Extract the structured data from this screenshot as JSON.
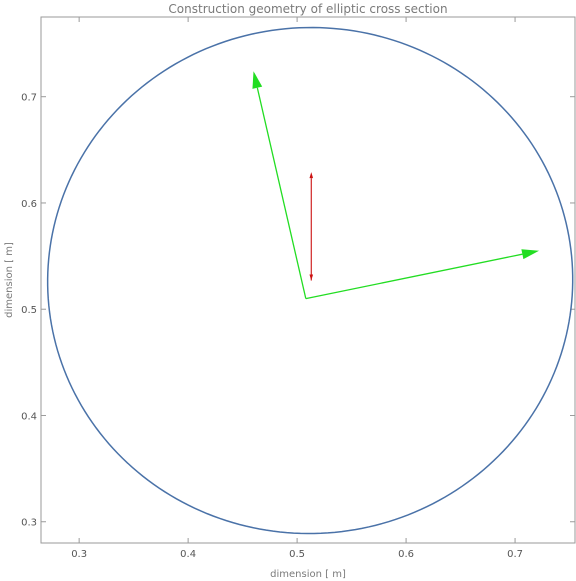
{
  "chart_data": {
    "type": "line",
    "title": "Construction geometry of elliptic cross section",
    "xlabel": "dimension [ m]",
    "ylabel": "dimension [ m]",
    "xlim": [
      0.265,
      0.755
    ],
    "ylim": [
      0.28,
      0.775
    ],
    "xticks": [
      0.3,
      0.4,
      0.5,
      0.6,
      0.7
    ],
    "yticks": [
      0.3,
      0.4,
      0.5,
      0.6,
      0.7
    ],
    "xtick_labels": [
      "0.3",
      "0.4",
      "0.5",
      "0.6",
      "0.7"
    ],
    "ytick_labels": [
      "0.3",
      "0.4",
      "0.5",
      "0.6",
      "0.7"
    ],
    "grid": false,
    "ellipse": {
      "center": [
        0.512,
        0.527
      ],
      "radius_x": 0.241,
      "radius_y": 0.238,
      "tilt_deg": 10,
      "color": "#4a72a8"
    },
    "vectors": [
      {
        "from": [
          0.508,
          0.51
        ],
        "to": [
          0.722,
          0.555
        ],
        "color": "#22dd22"
      },
      {
        "from": [
          0.508,
          0.51
        ],
        "to": [
          0.46,
          0.724
        ],
        "color": "#22dd22"
      },
      {
        "from": [
          0.513,
          0.527
        ],
        "to": [
          0.513,
          0.629
        ],
        "color": "#cc1111"
      }
    ]
  }
}
